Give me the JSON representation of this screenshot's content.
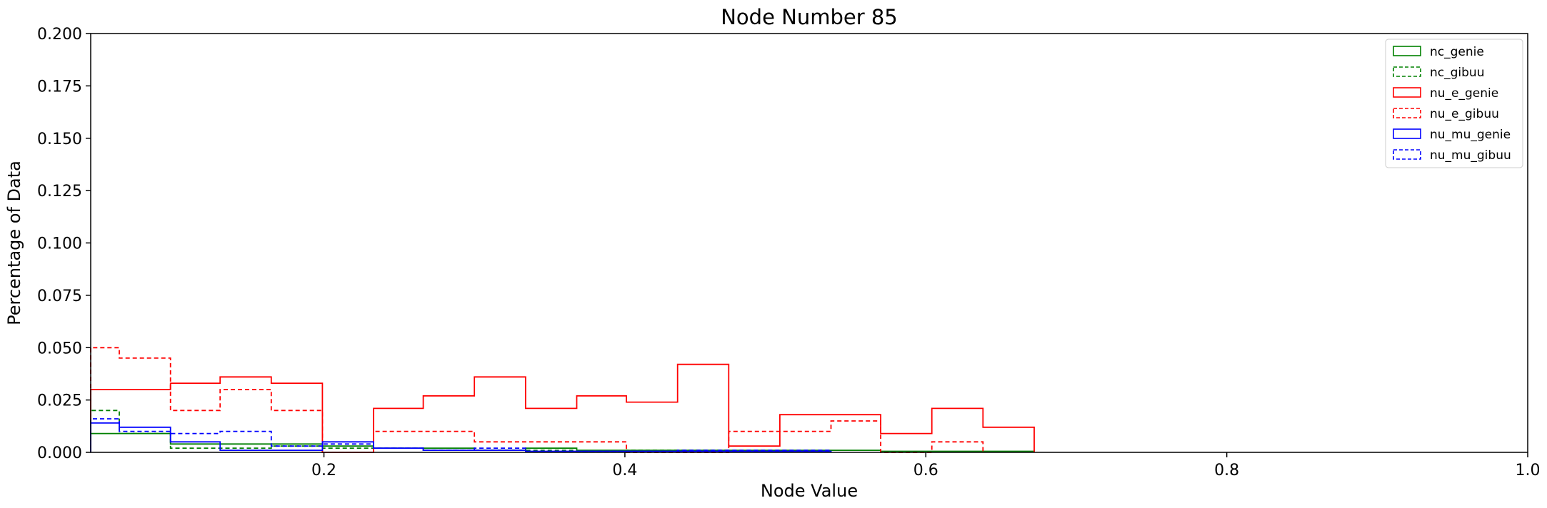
{
  "chart_data": {
    "type": "histogram",
    "title": "Node Number 85",
    "xlabel": "Node Value",
    "ylabel": "Percentage of Data",
    "xlim": [
      0.045,
      1.0
    ],
    "ylim": [
      0.0,
      0.2
    ],
    "xticks": [
      {
        "value": 0.2,
        "label": "0.2"
      },
      {
        "value": 0.4,
        "label": "0.4"
      },
      {
        "value": 0.6,
        "label": "0.6"
      },
      {
        "value": 0.8,
        "label": "0.8"
      },
      {
        "value": 1.0,
        "label": "1.0"
      }
    ],
    "yticks": [
      {
        "value": 0.0,
        "label": "0.000"
      },
      {
        "value": 0.025,
        "label": "0.025"
      },
      {
        "value": 0.05,
        "label": "0.050"
      },
      {
        "value": 0.075,
        "label": "0.075"
      },
      {
        "value": 0.1,
        "label": "0.100"
      },
      {
        "value": 0.125,
        "label": "0.125"
      },
      {
        "value": 0.15,
        "label": "0.150"
      },
      {
        "value": 0.175,
        "label": "0.175"
      },
      {
        "value": 0.2,
        "label": "0.200"
      }
    ],
    "grid": false,
    "legend_position": "top-right",
    "series": [
      {
        "name": "nc_genie",
        "color": "#008000",
        "style": "solid",
        "edges": [
          0.045,
          0.064,
          0.098,
          0.131,
          0.165,
          0.199,
          0.233,
          0.266,
          0.3,
          0.334,
          0.368,
          0.401,
          0.435,
          0.469,
          0.503,
          0.537,
          0.57,
          0.604,
          0.638,
          0.672
        ],
        "values": [
          0.009,
          0.009,
          0.004,
          0.004,
          0.004,
          0.003,
          0.002,
          0.002,
          0.001,
          0.002,
          0.001,
          0.001,
          0.001,
          0.001,
          0.001,
          0.001,
          0.0005,
          0.0005,
          0.0005
        ]
      },
      {
        "name": "nc_gibuu",
        "color": "#008000",
        "style": "dashed",
        "edges": [
          0.045,
          0.064,
          0.098,
          0.131,
          0.165,
          0.199,
          0.233,
          0.266,
          0.3,
          0.334,
          0.368,
          0.401,
          0.435,
          0.469
        ],
        "values": [
          0.02,
          0.009,
          0.002,
          0.002,
          0.003,
          0.002,
          0.002,
          0.001,
          0.001,
          0.001,
          0.0005,
          0.001,
          0.001
        ]
      },
      {
        "name": "nu_e_genie",
        "color": "#ff0000",
        "style": "solid",
        "edges": [
          0.045,
          0.064,
          0.098,
          0.131,
          0.165,
          0.199,
          0.233,
          0.266,
          0.3,
          0.334,
          0.368,
          0.401,
          0.435,
          0.469,
          0.503,
          0.537,
          0.57,
          0.604,
          0.638,
          0.672
        ],
        "values": [
          0.03,
          0.03,
          0.033,
          0.036,
          0.033,
          0.0,
          0.021,
          0.027,
          0.036,
          0.021,
          0.027,
          0.024,
          0.042,
          0.003,
          0.018,
          0.018,
          0.009,
          0.021,
          0.012
        ]
      },
      {
        "name": "nu_e_gibuu",
        "color": "#ff0000",
        "style": "dashed",
        "edges": [
          0.045,
          0.064,
          0.098,
          0.131,
          0.165,
          0.199,
          0.233,
          0.266,
          0.3,
          0.334,
          0.368,
          0.401,
          0.435,
          0.469,
          0.503,
          0.537,
          0.57,
          0.604,
          0.638
        ],
        "values": [
          0.05,
          0.045,
          0.02,
          0.03,
          0.02,
          0.0,
          0.01,
          0.01,
          0.005,
          0.005,
          0.005,
          0.0,
          0.0,
          0.01,
          0.01,
          0.015,
          0.0,
          0.005
        ]
      },
      {
        "name": "nu_mu_genie",
        "color": "#0000ff",
        "style": "solid",
        "edges": [
          0.045,
          0.064,
          0.098,
          0.131,
          0.165,
          0.199,
          0.233,
          0.266,
          0.3,
          0.334,
          0.368,
          0.401,
          0.435,
          0.469,
          0.503,
          0.537
        ],
        "values": [
          0.014,
          0.012,
          0.005,
          0.001,
          0.001,
          0.005,
          0.002,
          0.001,
          0.001,
          0.0005,
          0.0005,
          0.0005,
          0.0005,
          0.0005,
          0.0005
        ]
      },
      {
        "name": "nu_mu_gibuu",
        "color": "#0000ff",
        "style": "dashed",
        "edges": [
          0.045,
          0.064,
          0.098,
          0.131,
          0.165,
          0.199,
          0.233,
          0.266,
          0.3,
          0.334,
          0.368,
          0.401,
          0.435,
          0.469,
          0.503,
          0.537
        ],
        "values": [
          0.016,
          0.01,
          0.009,
          0.01,
          0.003,
          0.004,
          0.002,
          0.001,
          0.002,
          0.0005,
          0.0005,
          0.0005,
          0.001,
          0.001,
          0.001
        ]
      }
    ]
  }
}
